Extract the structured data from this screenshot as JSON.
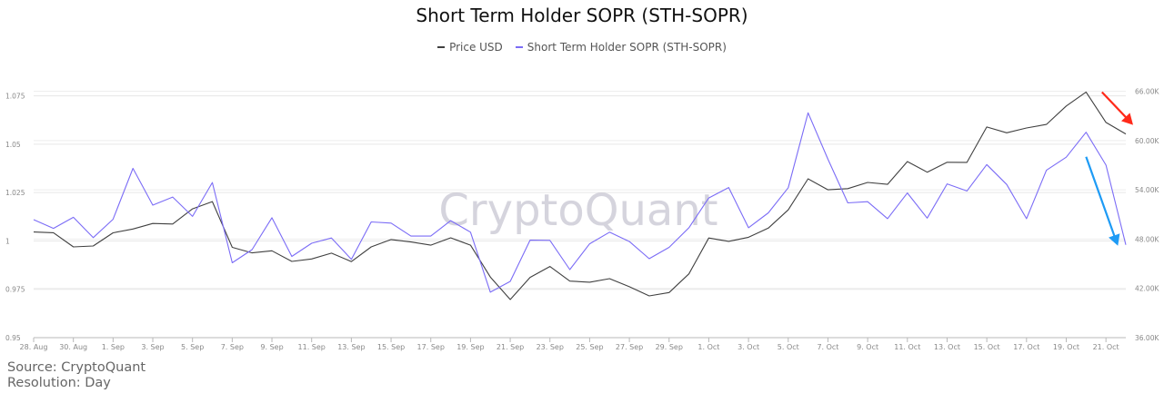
{
  "chart_data": {
    "type": "line",
    "title": "Short Term Holder SOPR (STH-SOPR)",
    "watermark": "CryptoQuant",
    "source": "Source: CryptoQuant",
    "resolution": "Resolution: Day",
    "x": [
      "28. Aug",
      "29. Aug",
      "30. Aug",
      "31. Aug",
      "1. Sep",
      "2. Sep",
      "3. Sep",
      "4. Sep",
      "5. Sep",
      "6. Sep",
      "7. Sep",
      "8. Sep",
      "9. Sep",
      "10. Sep",
      "11. Sep",
      "12. Sep",
      "13. Sep",
      "14. Sep",
      "15. Sep",
      "16. Sep",
      "17. Sep",
      "18. Sep",
      "19. Sep",
      "20. Sep",
      "21. Sep",
      "22. Sep",
      "23. Sep",
      "24. Sep",
      "25. Sep",
      "26. Sep",
      "27. Sep",
      "28. Sep",
      "29. Sep",
      "30. Sep",
      "1. Oct",
      "2. Oct",
      "3. Oct",
      "4. Oct",
      "5. Oct",
      "6. Oct",
      "7. Oct",
      "8. Oct",
      "9. Oct",
      "10. Oct",
      "11. Oct",
      "12. Oct",
      "13. Oct",
      "14. Oct",
      "15. Oct",
      "16. Oct",
      "17. Oct",
      "18. Oct",
      "19. Oct",
      "20. Oct",
      "21. Oct",
      "22. Oct"
    ],
    "x_tick_labels": [
      "28. Aug",
      "30. Aug",
      "1. Sep",
      "3. Sep",
      "5. Sep",
      "7. Sep",
      "9. Sep",
      "11. Sep",
      "13. Sep",
      "15. Sep",
      "17. Sep",
      "19. Sep",
      "21. Sep",
      "23. Sep",
      "25. Sep",
      "27. Sep",
      "29. Sep",
      "1. Oct",
      "3. Oct",
      "5. Oct",
      "7. Oct",
      "9. Oct",
      "11. Oct",
      "13. Oct",
      "15. Oct",
      "17. Oct",
      "19. Oct",
      "21. Oct"
    ],
    "y_left": {
      "ticks": [
        "0.95",
        "0.975",
        "1",
        "1.025",
        "1.05",
        "1.075"
      ],
      "range": [
        0.95,
        1.0795
      ]
    },
    "y_right": {
      "ticks": [
        "36.00K",
        "42.00K",
        "48.00K",
        "54.00K",
        "60.00K",
        "66.00K"
      ],
      "range": [
        36000,
        66500
      ]
    },
    "grid": true,
    "legend_position": "top-center",
    "series": [
      {
        "name": "Price USD",
        "axis": "right",
        "color": "#404040",
        "values": [
          48860,
          48780,
          47050,
          47160,
          48760,
          49230,
          49900,
          49840,
          51680,
          52560,
          46990,
          46320,
          46580,
          45280,
          45580,
          46290,
          45260,
          47050,
          47950,
          47650,
          47260,
          48160,
          47260,
          43380,
          40640,
          43340,
          44660,
          42880,
          42750,
          43180,
          42200,
          41080,
          41490,
          43770,
          48130,
          47730,
          48220,
          49340,
          51560,
          55340,
          54000,
          54140,
          54900,
          54670,
          57440,
          56140,
          57350,
          57340,
          61650,
          60940,
          61530,
          61960,
          64200,
          65900,
          62200,
          60800
        ]
      },
      {
        "name": "Short Term Holder SOPR (STH-SOPR)",
        "axis": "left",
        "color": "#7b6cf6",
        "values": [
          1.011,
          1.0065,
          1.0122,
          1.0017,
          1.0112,
          1.0375,
          1.0185,
          1.0227,
          1.0127,
          1.0302,
          0.9887,
          0.9955,
          1.012,
          0.992,
          0.9988,
          1.0015,
          0.9905,
          1.0098,
          1.0092,
          1.0025,
          1.0025,
          1.0105,
          1.0045,
          0.9735,
          0.9791,
          1.0004,
          1.0003,
          0.9852,
          0.9985,
          1.0045,
          0.9997,
          0.9908,
          0.9967,
          1.0068,
          1.0222,
          1.0276,
          1.0068,
          1.0145,
          1.0275,
          1.0662,
          1.0422,
          1.0197,
          1.0203,
          1.0115,
          1.0248,
          1.0118,
          1.0295,
          1.0258,
          1.0395,
          1.0292,
          1.0115,
          1.0365,
          1.0433,
          1.0562,
          1.0392,
          0.998
        ]
      }
    ],
    "annotations": [
      {
        "type": "arrow",
        "color": "#ff2a1a",
        "meaning": "red arrow pointing down-right at price decline"
      },
      {
        "type": "arrow",
        "color": "#1e9bf5",
        "meaning": "blue arrow pointing down at STH-SOPR decline"
      }
    ]
  }
}
